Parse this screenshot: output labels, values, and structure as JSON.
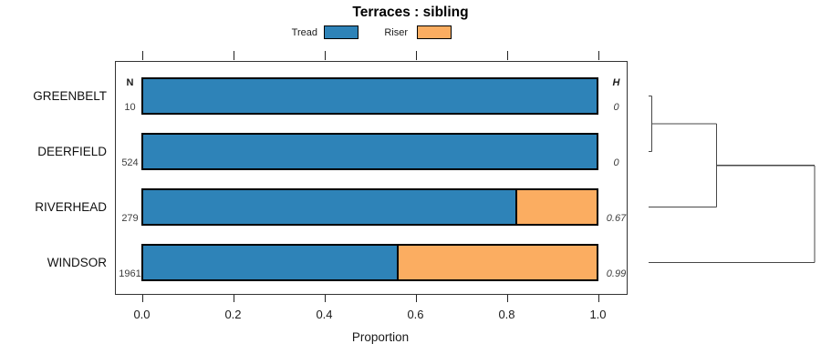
{
  "title": "Terraces : sibling",
  "legend": {
    "items": [
      {
        "label": "Tread",
        "color": "#2E83B8"
      },
      {
        "label": "Riser",
        "color": "#FBAD61"
      }
    ]
  },
  "columns": {
    "n": "N",
    "h": "H"
  },
  "axis": {
    "label": "Proportion",
    "ticks": [
      "0.0",
      "0.2",
      "0.4",
      "0.6",
      "0.8",
      "1.0"
    ],
    "min": 0,
    "max": 1
  },
  "rows": [
    {
      "category": "GREENBELT",
      "n": "10",
      "h": "0"
    },
    {
      "category": "DEERFIELD",
      "n": "524",
      "h": "0"
    },
    {
      "category": "RIVERHEAD",
      "n": "279",
      "h": "0.67"
    },
    {
      "category": "WINDSOR",
      "n": "1961",
      "h": "0.99"
    }
  ],
  "chart_data": {
    "type": "bar",
    "orientation": "horizontal",
    "stacked": true,
    "title": "Terraces : sibling",
    "xlabel": "Proportion",
    "xlim": [
      0,
      1
    ],
    "grid": false,
    "legend_position": "top",
    "categories": [
      "GREENBELT",
      "DEERFIELD",
      "RIVERHEAD",
      "WINDSOR"
    ],
    "series": [
      {
        "name": "Tread",
        "color": "#2E83B8",
        "values": [
          1.0,
          1.0,
          0.82,
          0.56
        ]
      },
      {
        "name": "Riser",
        "color": "#FBAD61",
        "values": [
          0.0,
          0.0,
          0.18,
          0.44
        ]
      }
    ],
    "sample_sizes": [
      10,
      524,
      279,
      1961
    ],
    "entropy_values": [
      0,
      0,
      0.67,
      0.99
    ],
    "dendrogram": {
      "side": "right",
      "leaf_order": [
        "GREENBELT",
        "DEERFIELD",
        "RIVERHEAD",
        "WINDSOR"
      ],
      "heights_normalized": true,
      "merges": [
        {
          "children": [
            0,
            1
          ],
          "height": 0.02
        },
        {
          "children": [
            4,
            2
          ],
          "height": 0.41
        },
        {
          "children": [
            5,
            3
          ],
          "height": 1.0
        }
      ]
    }
  }
}
